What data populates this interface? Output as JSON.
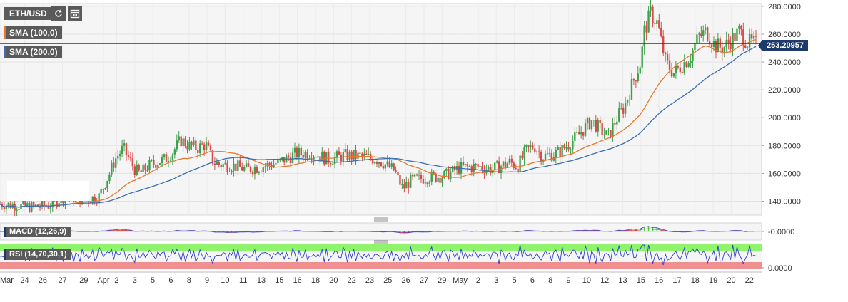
{
  "chart_data": {
    "type": "candlestick",
    "symbol": "ETH/USD",
    "indicators": [
      {
        "label": "SMA (100,0)",
        "color": "#e6782f"
      },
      {
        "label": "SMA (200,0)",
        "color": "#3c6eb4"
      }
    ],
    "last_price_label": "253.20957",
    "y_ticks": [
      "280.0000",
      "260.0000",
      "240.0000",
      "220.0000",
      "200.0000",
      "180.0000",
      "160.0000",
      "140.0000"
    ],
    "y_tick_values": [
      280,
      260,
      240,
      220,
      200,
      180,
      160,
      140
    ],
    "ylim": [
      130,
      282
    ],
    "x_ticks": [
      "Mar",
      "24",
      "26",
      "27",
      "29",
      "Apr",
      "2",
      "3",
      "5",
      "6",
      "8",
      "9",
      "10",
      "11",
      "13",
      "15",
      "16",
      "18",
      "20",
      "22",
      "23",
      "25",
      "26",
      "27",
      "29",
      "May",
      "2",
      "3",
      "5",
      "6",
      "8",
      "9",
      "10",
      "12",
      "13",
      "15",
      "16",
      "17",
      "18",
      "19",
      "20",
      "22"
    ],
    "x_tick_positions": [
      0.0,
      1.5,
      2.6,
      3.8,
      5.1,
      6.3,
      7.1,
      8.2,
      9.3,
      10.4,
      11.5,
      12.6,
      13.7,
      14.8,
      15.9,
      17.0,
      18.1,
      19.2,
      20.3,
      21.4,
      22.5,
      23.6,
      24.7,
      25.8,
      26.9,
      28.0,
      29.1,
      30.2,
      31.3,
      32.4,
      33.5,
      34.6,
      35.7,
      36.8,
      37.9,
      39.0,
      40.1,
      41.2,
      42.3,
      43.4,
      44.5,
      45.6
    ],
    "price_anchors": {
      "x": [
        0,
        2,
        3,
        4,
        5,
        6,
        6.6,
        7,
        7.5,
        8.2,
        8.5,
        9,
        9.5,
        10,
        10.5,
        11,
        11.5,
        12,
        12.5,
        13,
        13.5,
        14,
        15,
        16,
        17,
        18,
        19,
        20,
        21,
        22,
        23,
        24,
        24.5,
        25,
        26,
        27,
        28,
        29,
        30,
        31,
        31.5,
        32,
        32.5,
        33,
        34,
        35,
        36,
        36.5,
        37,
        37.5,
        38,
        38.5,
        39,
        39.2,
        39.6,
        40,
        40.5,
        41,
        41.5,
        42,
        42.5,
        43,
        43.5,
        44,
        44.5,
        45,
        45.5,
        46
      ],
      "y": [
        138,
        136,
        137,
        144,
        141,
        143,
        158,
        170,
        178,
        163,
        160,
        165,
        168,
        170,
        175,
        184,
        180,
        178,
        181,
        168,
        166,
        166,
        163,
        165,
        168,
        174,
        175,
        170,
        173,
        172,
        170,
        162,
        149,
        155,
        157,
        158,
        164,
        165,
        163,
        168,
        165,
        176,
        180,
        172,
        175,
        185,
        198,
        192,
        186,
        199,
        208,
        225,
        240,
        262,
        275,
        268,
        240,
        232,
        238,
        244,
        258,
        262,
        252,
        250,
        256,
        262,
        254,
        253
      ]
    },
    "macd": {
      "label": "MACD (12,26,9)",
      "tick": "-0.0000"
    },
    "rsi": {
      "label": "RSI (14,70,30,1)",
      "tick": "0.0000",
      "upper": 70,
      "lower": 30
    },
    "colors": {
      "up": "#3fa04b",
      "down": "#d84a4a",
      "sma100": "#e6782f",
      "sma200": "#3c6eb4",
      "rsi_line": "#2b3fd0",
      "overbought": "#8ff36b",
      "oversold": "#f08f8f",
      "price_line": "#1e3a6a"
    }
  }
}
